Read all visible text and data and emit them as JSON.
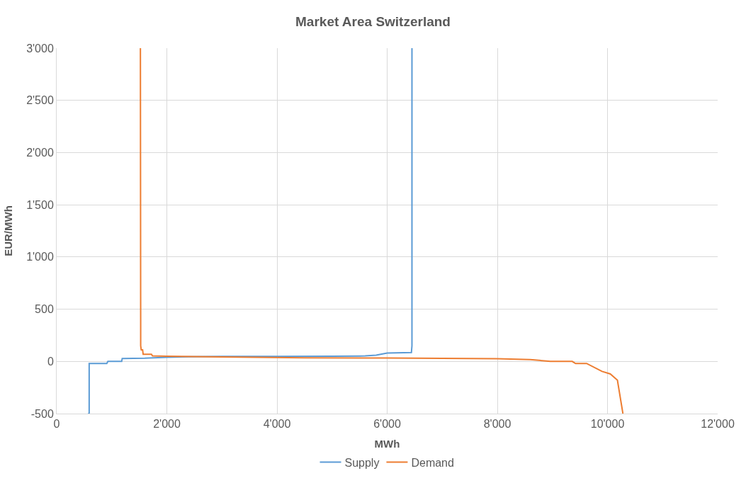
{
  "chart_data": {
    "type": "line",
    "title": "Market Area Switzerland",
    "xlabel": "MWh",
    "ylabel": "EUR/MWh",
    "xlim": [
      0,
      12000
    ],
    "xticks": [
      {
        "value": 0,
        "label": "0"
      },
      {
        "value": 2000,
        "label": "2'000"
      },
      {
        "value": 4000,
        "label": "4'000"
      },
      {
        "value": 6000,
        "label": "6'000"
      },
      {
        "value": 8000,
        "label": "8'000"
      },
      {
        "value": 10000,
        "label": "10'000"
      },
      {
        "value": 12000,
        "label": "12'000"
      }
    ],
    "ylim": [
      -500,
      3000
    ],
    "yticks": [
      {
        "value": -500,
        "label": "-500"
      },
      {
        "value": 0,
        "label": "0"
      },
      {
        "value": 500,
        "label": "500"
      },
      {
        "value": 1000,
        "label": "1'000"
      },
      {
        "value": 1500,
        "label": "1'500"
      },
      {
        "value": 2000,
        "label": "2'000"
      },
      {
        "value": 2500,
        "label": "2'500"
      },
      {
        "value": 3000,
        "label": "3'000"
      }
    ],
    "grid": true,
    "legend": "bottom",
    "marker": "none",
    "line_style": "solid",
    "series": [
      {
        "name": "Supply",
        "color": "#5b9bd5",
        "x": [
          570,
          590,
          590,
          910,
          930,
          1180,
          1190,
          1600,
          2000,
          2400,
          3000,
          4000,
          5000,
          5600,
          5800,
          6000,
          6440,
          6450,
          6450
        ],
        "values": [
          -500,
          -500,
          -20,
          -20,
          0,
          0,
          28,
          30,
          40,
          45,
          48,
          48,
          50,
          52,
          60,
          80,
          85,
          150,
          3000
        ]
      },
      {
        "name": "Demand",
        "color": "#ed7d31",
        "x": [
          1520,
          1525,
          1525,
          1535,
          1560,
          1570,
          1720,
          1740,
          2000,
          3000,
          4500,
          6000,
          8000,
          8600,
          8960,
          9360,
          9420,
          9620,
          9900,
          10050,
          10180,
          10280
        ],
        "values": [
          3000,
          400,
          150,
          110,
          110,
          68,
          68,
          52,
          50,
          42,
          35,
          32,
          25,
          18,
          0,
          0,
          -20,
          -20,
          -96,
          -120,
          -180,
          -500
        ]
      }
    ]
  }
}
